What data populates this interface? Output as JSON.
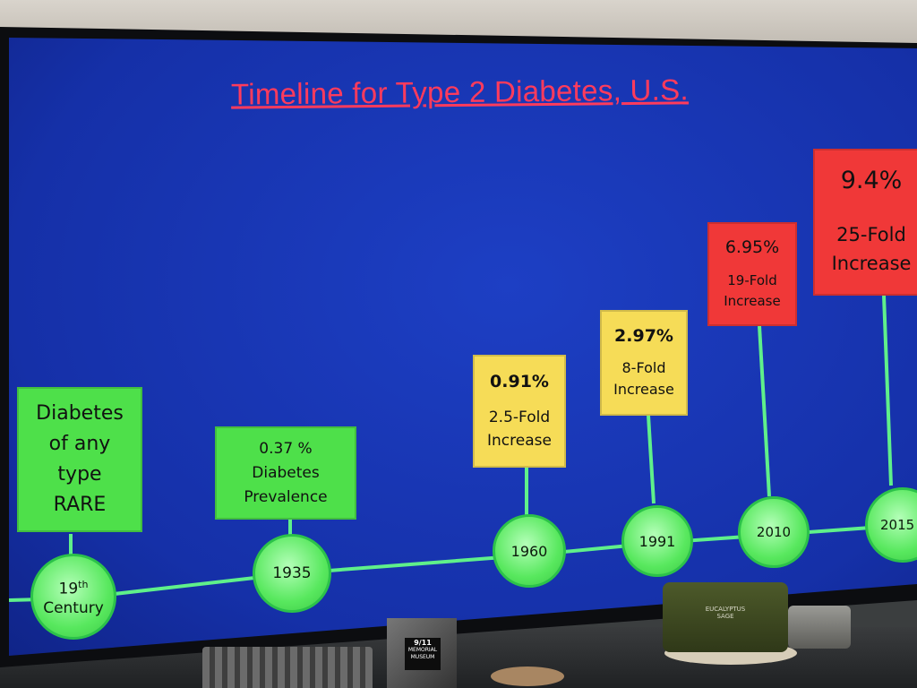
{
  "slide": {
    "title": "Timeline for Type 2 Diabetes, U.S.",
    "events": [
      {
        "year": "19",
        "year_suffix": "th",
        "year_line2": "Century",
        "box_lines": [
          "Diabetes",
          "of any",
          "type",
          "RARE"
        ],
        "box_color": "green"
      },
      {
        "year": "1935",
        "box_lines": [
          "0.37 %",
          "Diabetes",
          "Prevalence"
        ],
        "box_color": "green"
      },
      {
        "year": "1960",
        "box_lines": [
          "0.91%",
          "2.5-Fold",
          "Increase"
        ],
        "box_color": "yellow"
      },
      {
        "year": "1991",
        "box_lines": [
          "2.97%",
          "8-Fold",
          "Increase"
        ],
        "box_color": "yellow"
      },
      {
        "year": "2010",
        "box_lines": [
          "6.95%",
          "19-Fold",
          "Increase"
        ],
        "box_color": "red"
      },
      {
        "year": "2015",
        "box_lines": [
          "9.4%",
          "25-Fold",
          "Increase"
        ],
        "box_color": "red"
      }
    ]
  },
  "room": {
    "book_label": [
      "9/11",
      "MEMORIAL",
      "MUSEUM"
    ],
    "candle_label": [
      "EUCALYPTUS",
      "SAGE"
    ]
  },
  "colors": {
    "screen": "#1a38b8",
    "title": "#ff3b5c",
    "line": "#5ff08a",
    "green_box": "#4ee04a",
    "yellow_box": "#f6dc57",
    "red_box": "#f03838"
  }
}
